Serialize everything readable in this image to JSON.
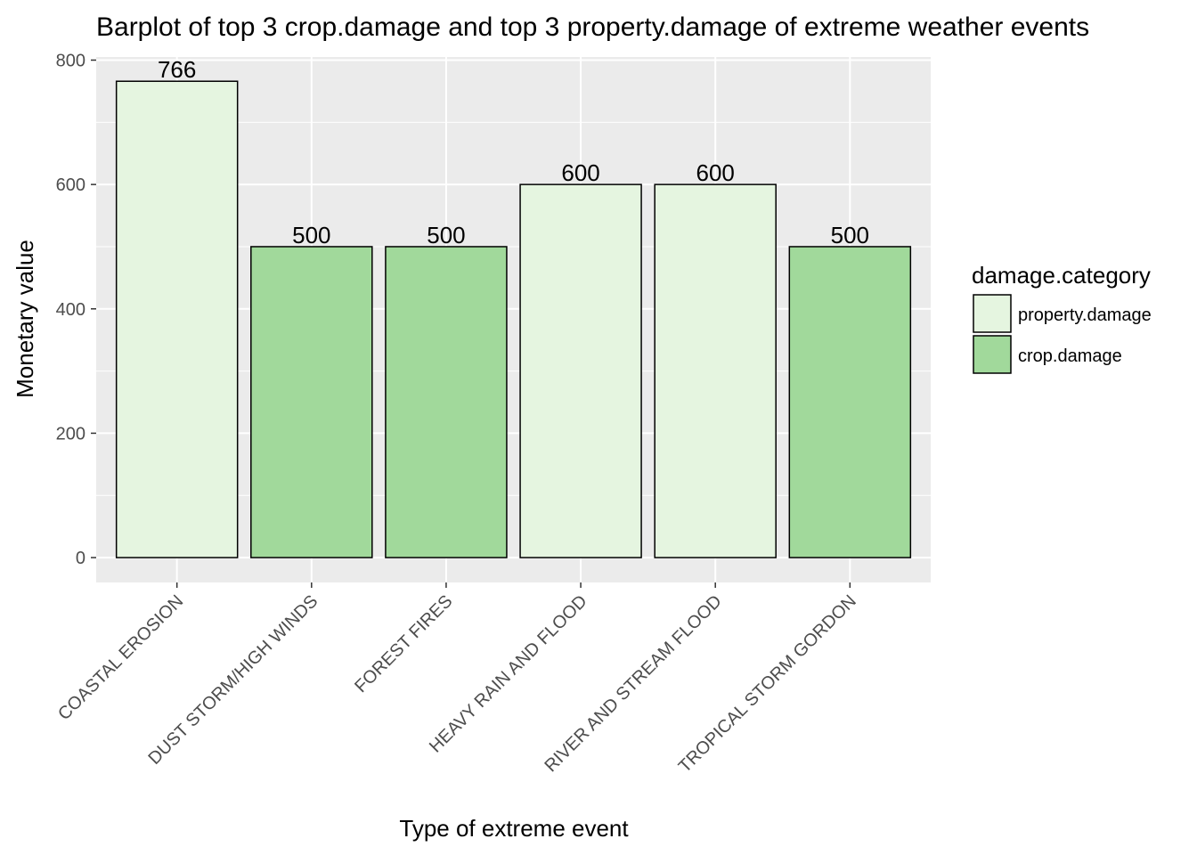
{
  "chart_data": {
    "type": "bar",
    "title": "Barplot of top 3 crop.damage and top 3 property.damage of extreme weather events",
    "xlabel": "Type of extreme event",
    "ylabel": "Monetary value",
    "categories": [
      "COASTAL EROSION",
      "DUST STORM/HIGH WINDS",
      "FOREST FIRES",
      "HEAVY RAIN AND FLOOD",
      "RIVER AND STREAM FLOOD",
      "TROPICAL STORM GORDON"
    ],
    "values": [
      766,
      500,
      500,
      600,
      600,
      500
    ],
    "value_labels": [
      "766",
      "500",
      "500",
      "600",
      "600",
      "500"
    ],
    "bar_category": [
      "property.damage",
      "crop.damage",
      "crop.damage",
      "property.damage",
      "property.damage",
      "crop.damage"
    ],
    "ylim": [
      -40,
      805
    ],
    "yticks": [
      0,
      200,
      400,
      600,
      800
    ],
    "ytick_labels": [
      "0",
      "200",
      "400",
      "600",
      "800"
    ],
    "grid": true,
    "legend": {
      "title": "damage.category",
      "position": "right",
      "entries": [
        {
          "label": "property.damage",
          "color": "#e5f5e0"
        },
        {
          "label": "crop.damage",
          "color": "#a1d99b"
        }
      ]
    },
    "colors": {
      "panel_background": "#ebebeb",
      "grid": "#ffffff",
      "bar_border": "#000000"
    }
  }
}
